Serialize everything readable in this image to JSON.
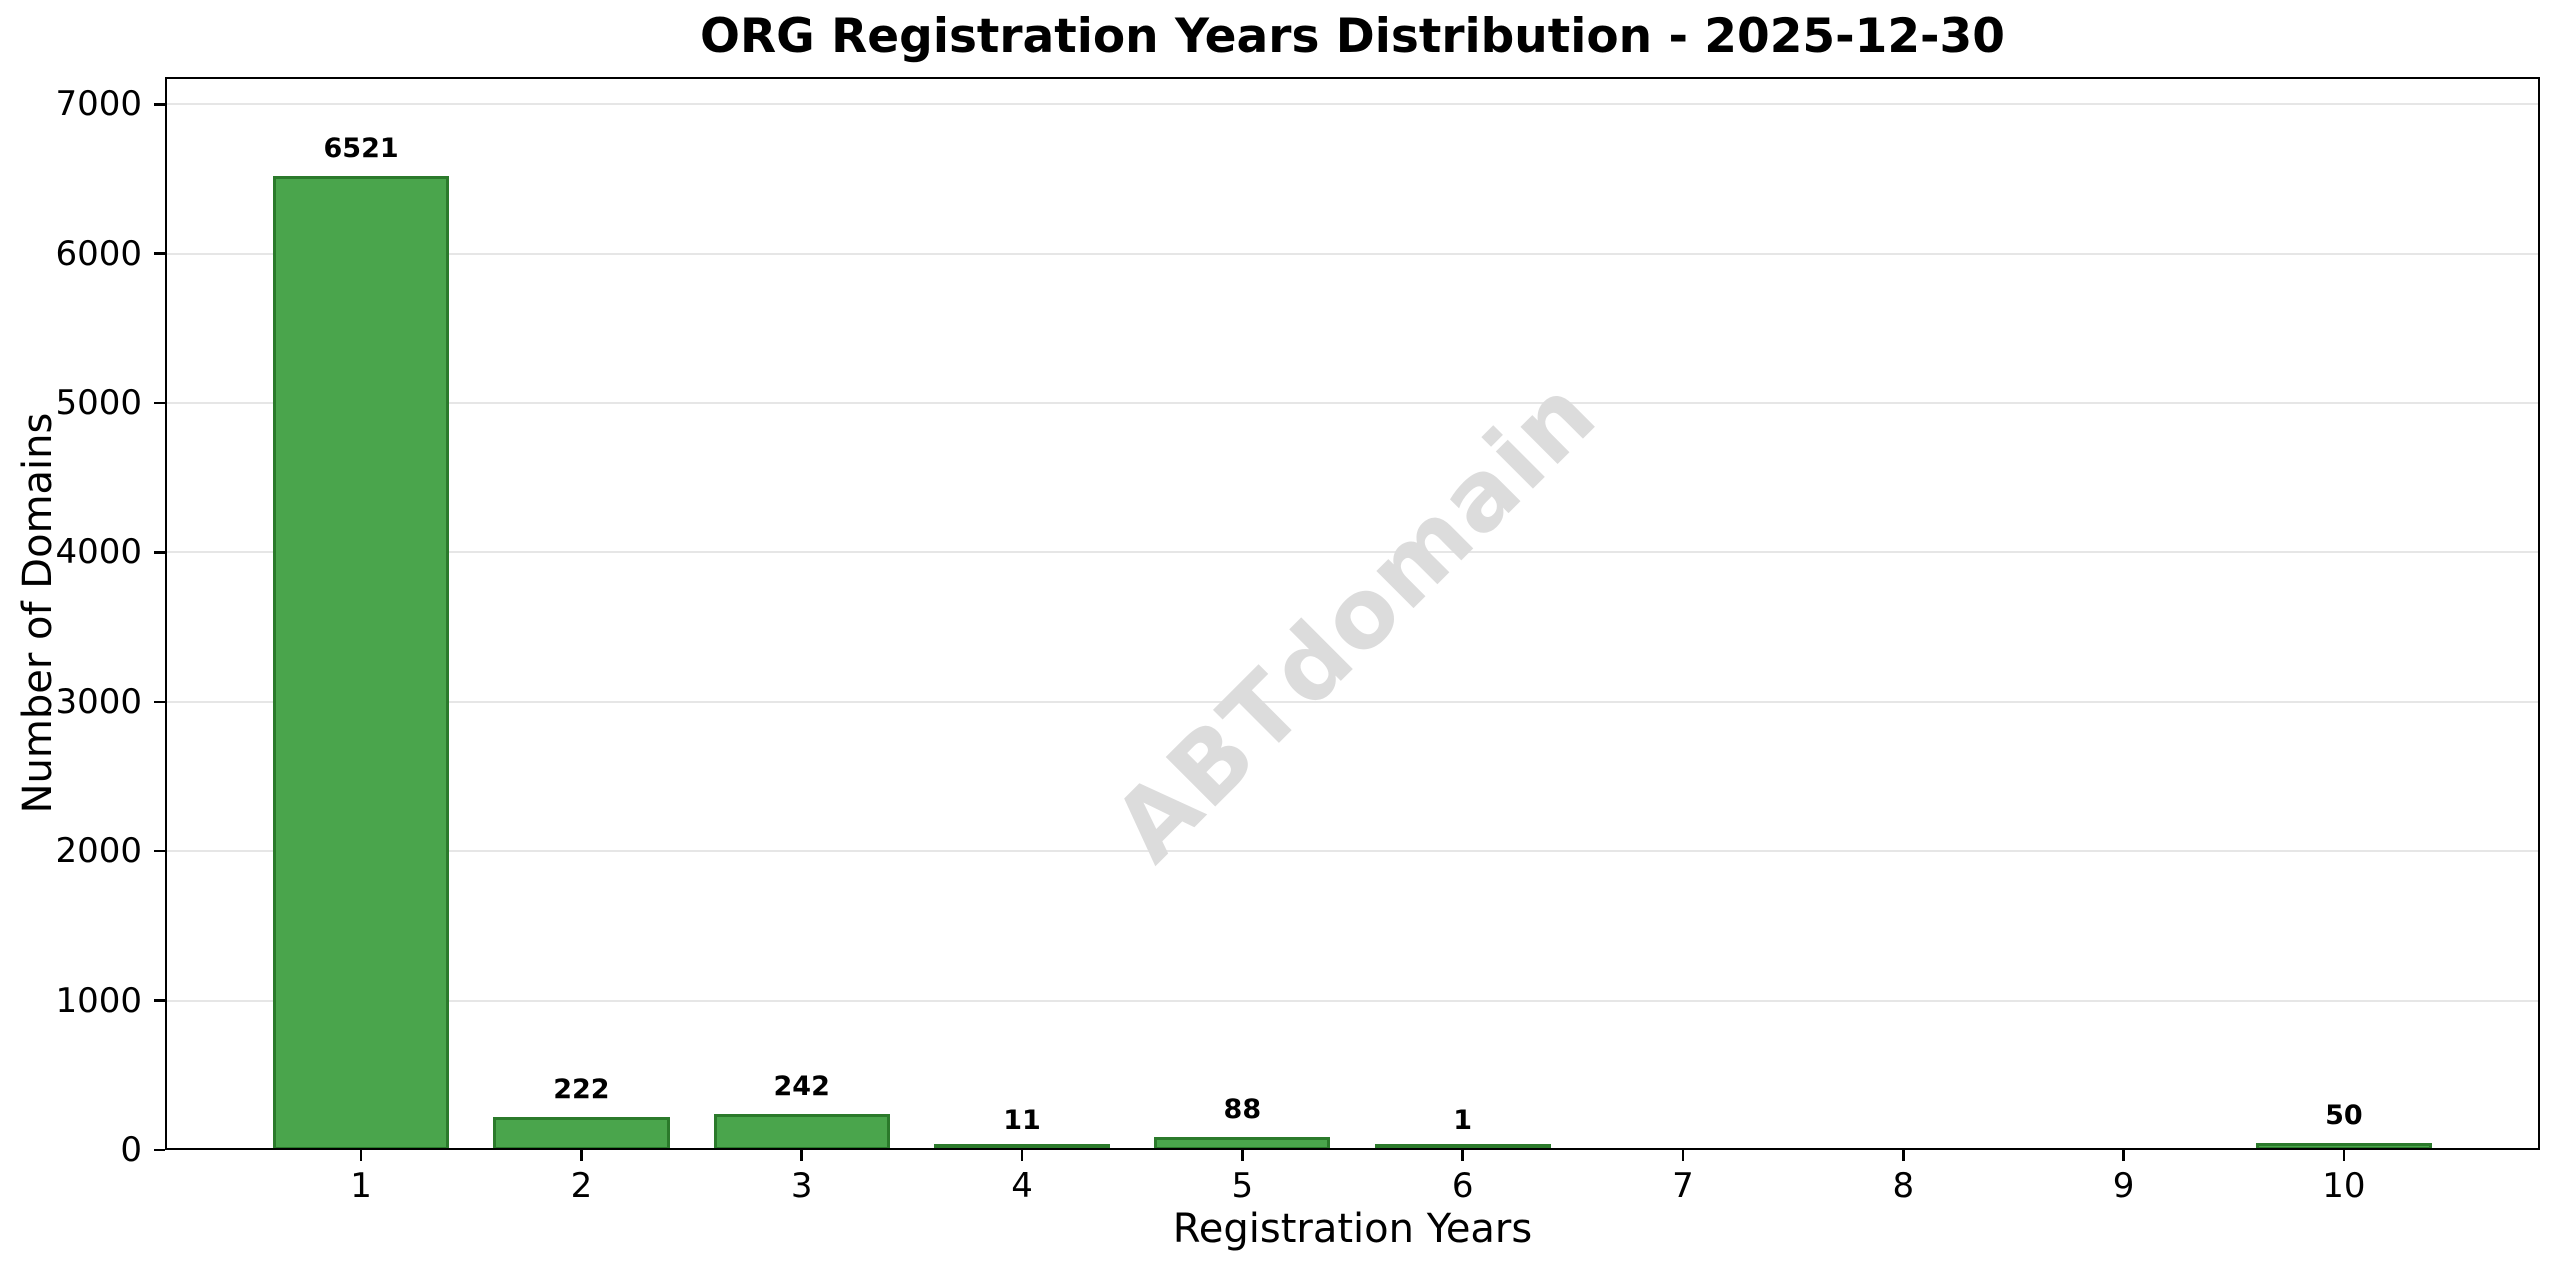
{
  "watermark": "ABTdomain",
  "chart_data": {
    "type": "bar",
    "title": "ORG Registration Years Distribution - 2025-12-30",
    "xlabel": "Registration Years",
    "ylabel": "Number of Domains",
    "categories": [
      1,
      2,
      3,
      4,
      5,
      6,
      7,
      8,
      9,
      10
    ],
    "values": [
      6521,
      222,
      242,
      11,
      88,
      1,
      0,
      0,
      0,
      50
    ],
    "show_value_labels": true,
    "x_tick_labels": [
      "1",
      "2",
      "3",
      "4",
      "5",
      "6",
      "7",
      "8",
      "9",
      "10"
    ],
    "y_ticks": [
      0,
      1000,
      2000,
      3000,
      4000,
      5000,
      6000,
      7000
    ],
    "y_tick_labels": [
      "0",
      "1000",
      "2000",
      "3000",
      "4000",
      "5000",
      "6000",
      "7000"
    ],
    "xlim": [
      0.11,
      10.89
    ],
    "ylim": [
      0,
      7183
    ],
    "bar_width_units": 0.8,
    "grid": "horizontal",
    "legend": "none",
    "colors": {
      "bar_fill": "#4aa54c",
      "bar_edge": "#2b7a2b",
      "grid": "#e6e6e6",
      "axis": "#000000",
      "text": "#000000",
      "watermark": "#dcdcdc",
      "background": "#ffffff"
    }
  }
}
